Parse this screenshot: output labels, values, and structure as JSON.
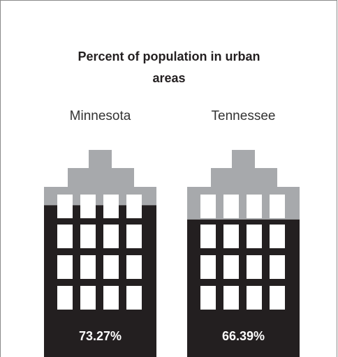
{
  "chart_data": {
    "type": "pictorial-bar",
    "title": "Percent of population in urban areas",
    "categories": [
      "Minnesota",
      "Tennessee"
    ],
    "values": [
      73.27,
      66.39
    ],
    "value_labels": [
      "73.27%",
      "66.39%"
    ],
    "color": "#231f20",
    "background_color": "#a7a9ac",
    "ylim": [
      0,
      100
    ]
  }
}
